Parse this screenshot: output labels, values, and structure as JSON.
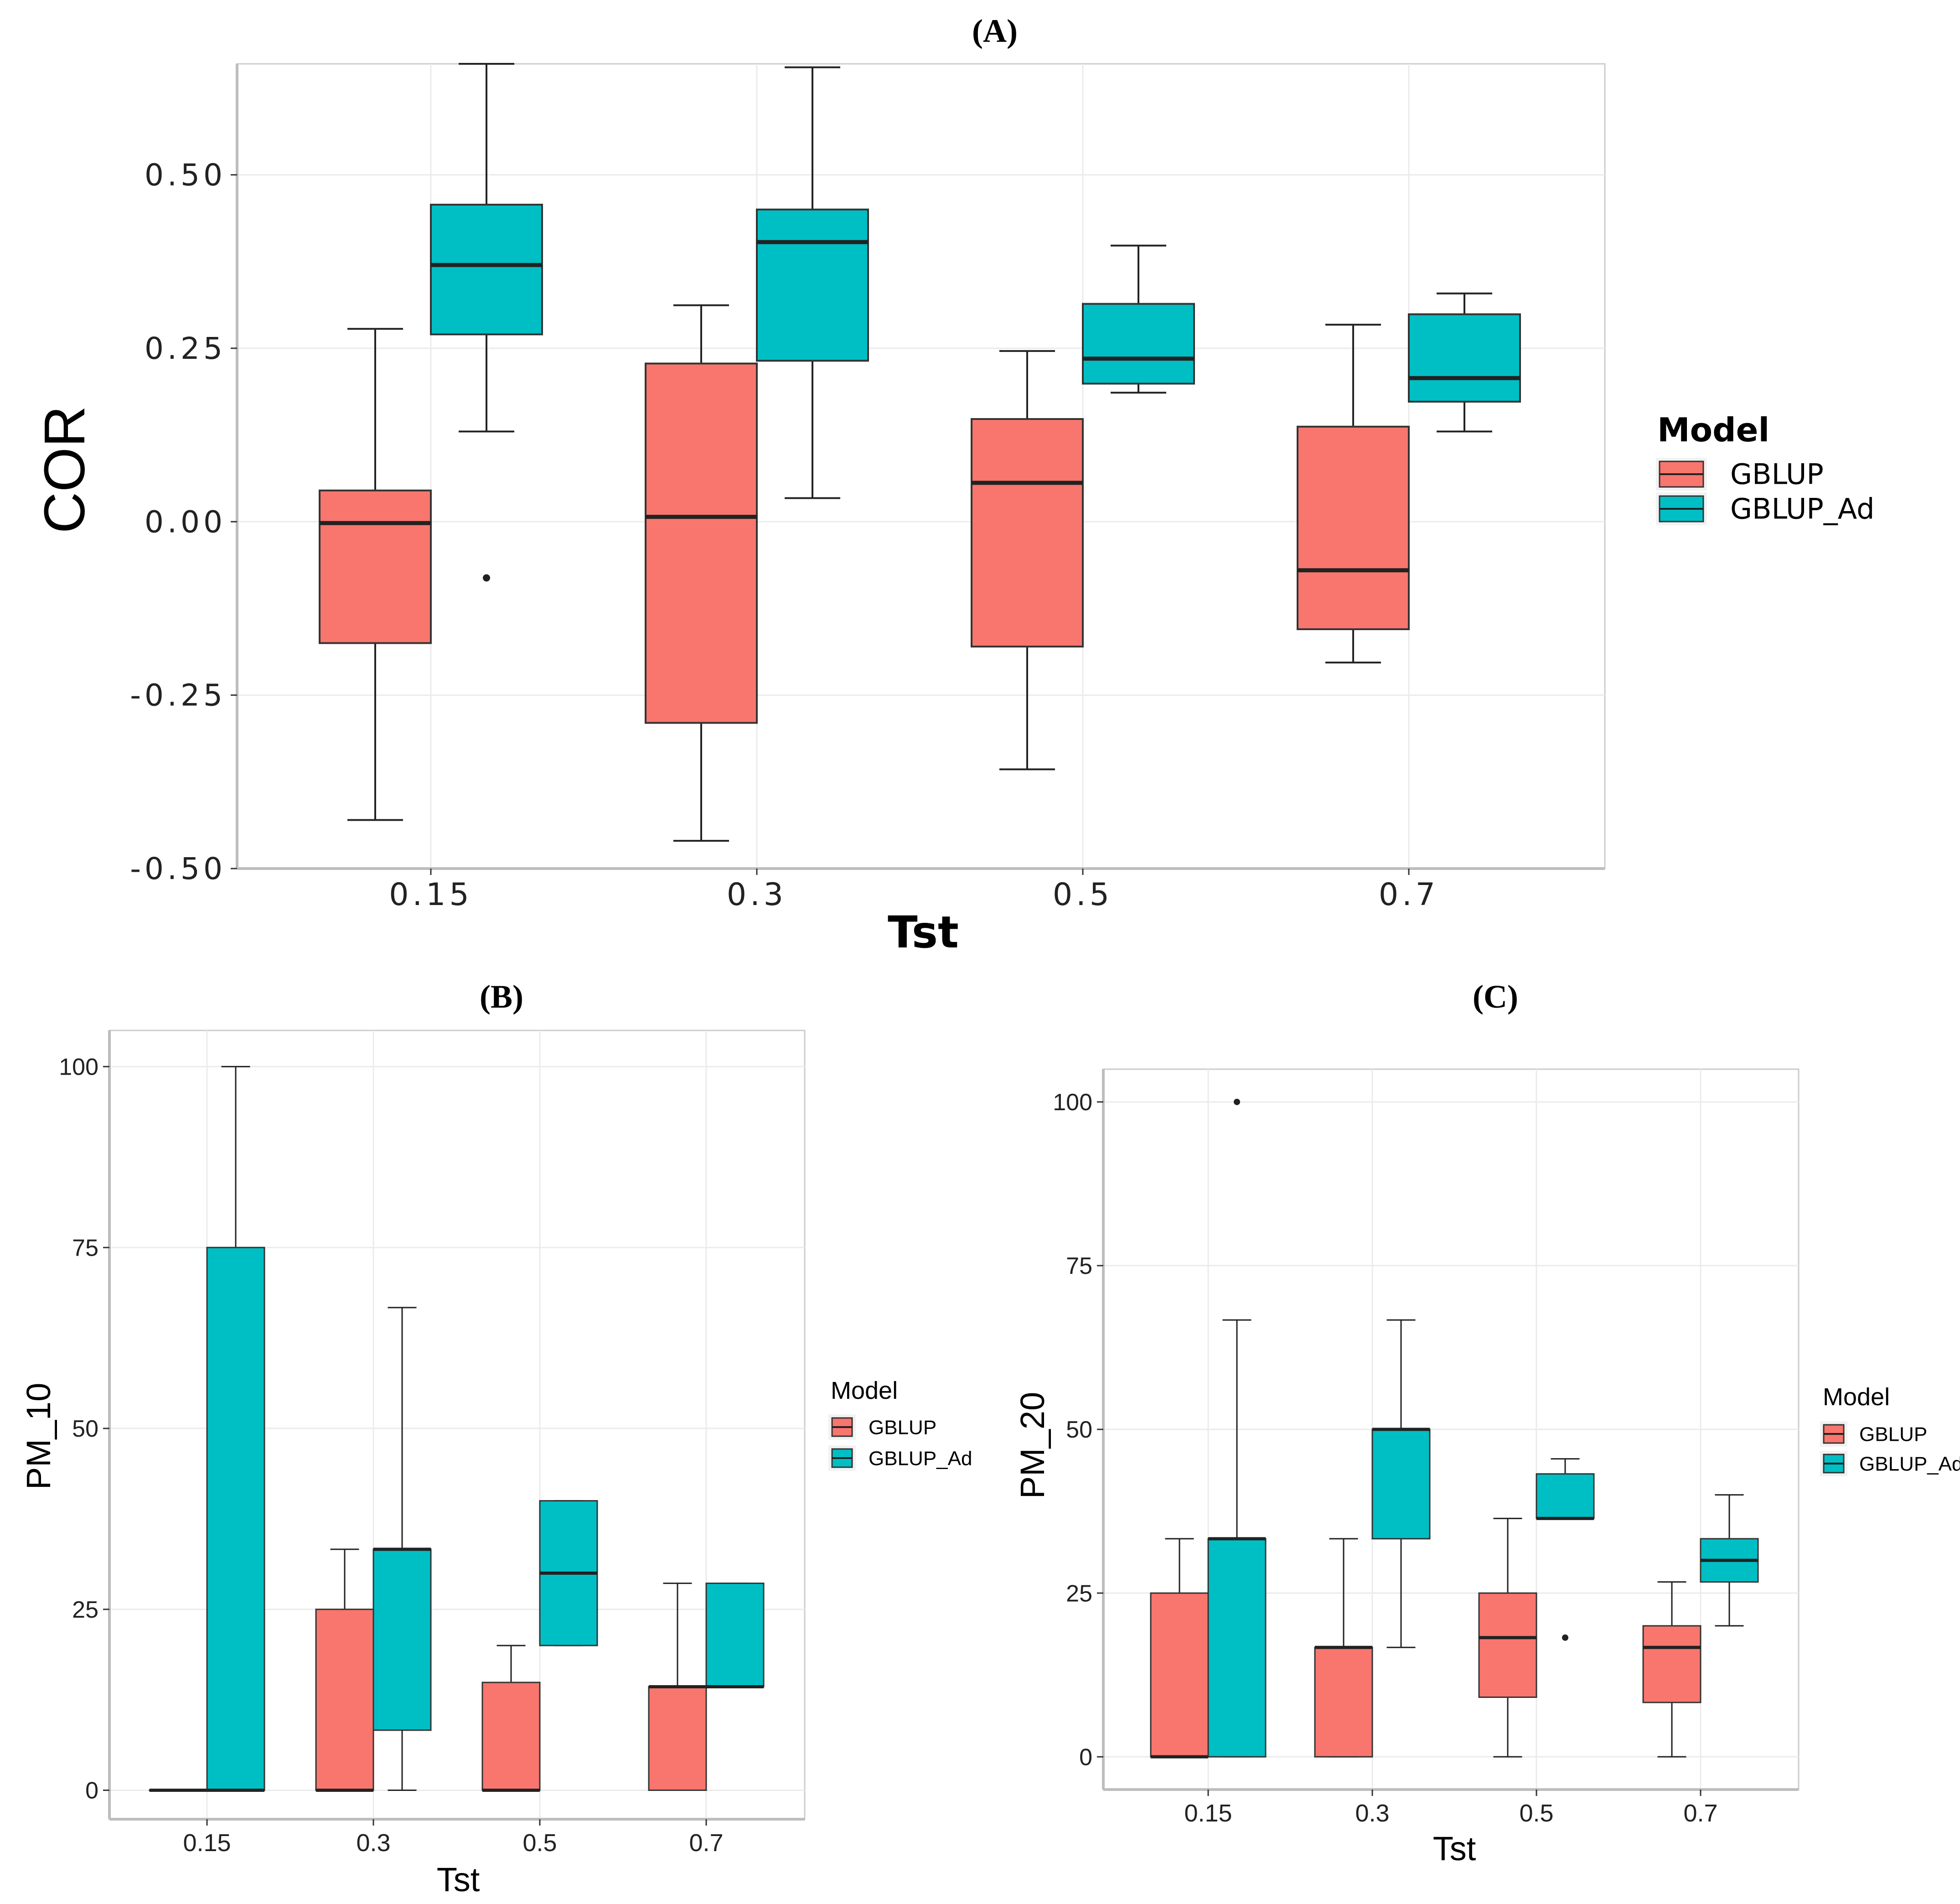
{
  "colors": {
    "gblup": "#F8766D",
    "gblup_ad": "#00BFC4",
    "grid": "#EBEBEB",
    "axis": "#000000",
    "median": "#222222"
  },
  "chart_data": [
    {
      "id": "A",
      "panel_label": "(A)",
      "type": "boxplot",
      "xlabel": "Tst",
      "ylabel": "COR",
      "ylim": [
        -0.5,
        0.66
      ],
      "yticks": [
        -0.5,
        -0.25,
        0.0,
        0.25,
        0.5
      ],
      "ytick_labels": [
        "-0.50",
        "-0.25",
        "0.00",
        "0.25",
        "0.50"
      ],
      "categories": [
        "0.15",
        "0.3",
        "0.5",
        "0.7"
      ],
      "legend": {
        "title": "Model",
        "position": "right",
        "entries": [
          "GBLUP",
          "GBLUP_Ad"
        ]
      },
      "series": [
        {
          "name": "GBLUP",
          "color": "#F8766D",
          "boxes": [
            {
              "min": -0.43,
              "q1": -0.175,
              "median": -0.002,
              "q3": 0.045,
              "max": 0.278,
              "outliers": []
            },
            {
              "min": -0.46,
              "q1": -0.29,
              "median": 0.007,
              "q3": 0.228,
              "max": 0.312,
              "outliers": []
            },
            {
              "min": -0.357,
              "q1": -0.18,
              "median": 0.056,
              "q3": 0.148,
              "max": 0.246,
              "outliers": []
            },
            {
              "min": -0.203,
              "q1": -0.155,
              "median": -0.07,
              "q3": 0.137,
              "max": 0.284,
              "outliers": []
            }
          ]
        },
        {
          "name": "GBLUP_Ad",
          "color": "#00BFC4",
          "boxes": [
            {
              "min": 0.13,
              "q1": 0.27,
              "median": 0.37,
              "q3": 0.457,
              "max": 0.66,
              "outliers": [
                -0.081
              ]
            },
            {
              "min": 0.034,
              "q1": 0.232,
              "median": 0.403,
              "q3": 0.45,
              "max": 0.655,
              "outliers": []
            },
            {
              "min": 0.186,
              "q1": 0.199,
              "median": 0.235,
              "q3": 0.314,
              "max": 0.398,
              "outliers": []
            },
            {
              "min": 0.13,
              "q1": 0.173,
              "median": 0.207,
              "q3": 0.299,
              "max": 0.329,
              "outliers": []
            }
          ]
        }
      ]
    },
    {
      "id": "B",
      "panel_label": "(B)",
      "type": "boxplot",
      "xlabel": "Tst",
      "ylabel": "PM_10",
      "ylim": [
        -4,
        105
      ],
      "yticks": [
        0,
        25,
        50,
        75,
        100
      ],
      "ytick_labels": [
        "0",
        "25",
        "50",
        "75",
        "100"
      ],
      "categories": [
        "0.15",
        "0.3",
        "0.5",
        "0.7"
      ],
      "legend": {
        "title": "Model",
        "position": "right",
        "entries": [
          "GBLUP",
          "GBLUP_Ad"
        ]
      },
      "series": [
        {
          "name": "GBLUP",
          "color": "#F8766D",
          "boxes": [
            {
              "min": 0,
              "q1": 0,
              "median": 0,
              "q3": 0,
              "max": 0,
              "outliers": []
            },
            {
              "min": 0,
              "q1": 0,
              "median": 0,
              "q3": 25,
              "max": 33.3,
              "outliers": []
            },
            {
              "min": 0,
              "q1": 0,
              "median": 0,
              "q3": 14.9,
              "max": 20,
              "outliers": []
            },
            {
              "min": 0,
              "q1": 0,
              "median": 14.3,
              "q3": 14.3,
              "max": 28.6,
              "outliers": []
            }
          ]
        },
        {
          "name": "GBLUP_Ad",
          "color": "#00BFC4",
          "boxes": [
            {
              "min": 0,
              "q1": 0,
              "median": 0,
              "q3": 75,
              "max": 100,
              "outliers": []
            },
            {
              "min": 0,
              "q1": 8.3,
              "median": 33.3,
              "q3": 33.3,
              "max": 66.7,
              "outliers": []
            },
            {
              "min": 20,
              "q1": 20,
              "median": 30,
              "q3": 40,
              "max": 40,
              "outliers": []
            },
            {
              "min": 14.3,
              "q1": 14.3,
              "median": 14.3,
              "q3": 28.6,
              "max": 28.6,
              "outliers": []
            }
          ]
        }
      ]
    },
    {
      "id": "C",
      "panel_label": "(C)",
      "type": "boxplot",
      "xlabel": "Tst",
      "ylabel": "PM_20",
      "ylim": [
        -5,
        105
      ],
      "yticks": [
        0,
        25,
        50,
        75,
        100
      ],
      "ytick_labels": [
        "0",
        "25",
        "50",
        "75",
        "100"
      ],
      "categories": [
        "0.15",
        "0.3",
        "0.5",
        "0.7"
      ],
      "legend": {
        "title": "Model",
        "position": "right",
        "entries": [
          "GBLUP",
          "GBLUP_Ad"
        ]
      },
      "series": [
        {
          "name": "GBLUP",
          "color": "#F8766D",
          "boxes": [
            {
              "min": 0,
              "q1": 0,
              "median": 0,
              "q3": 25,
              "max": 33.3,
              "outliers": []
            },
            {
              "min": 0,
              "q1": 0,
              "median": 16.7,
              "q3": 16.7,
              "max": 33.3,
              "outliers": []
            },
            {
              "min": 0,
              "q1": 9.1,
              "median": 18.2,
              "q3": 25,
              "max": 36.4,
              "outliers": []
            },
            {
              "min": 0,
              "q1": 8.3,
              "median": 16.7,
              "q3": 20,
              "max": 26.7,
              "outliers": []
            }
          ]
        },
        {
          "name": "GBLUP_Ad",
          "color": "#00BFC4",
          "boxes": [
            {
              "min": 0,
              "q1": 0,
              "median": 33.3,
              "q3": 33.3,
              "max": 66.7,
              "outliers": [
                100
              ]
            },
            {
              "min": 16.7,
              "q1": 33.3,
              "median": 50,
              "q3": 50,
              "max": 66.7,
              "outliers": []
            },
            {
              "min": 36.4,
              "q1": 36.4,
              "median": 36.4,
              "q3": 43.2,
              "max": 45.5,
              "outliers": [
                18.2
              ]
            },
            {
              "min": 20,
              "q1": 26.7,
              "median": 30,
              "q3": 33.3,
              "max": 40,
              "outliers": []
            }
          ]
        }
      ]
    }
  ]
}
